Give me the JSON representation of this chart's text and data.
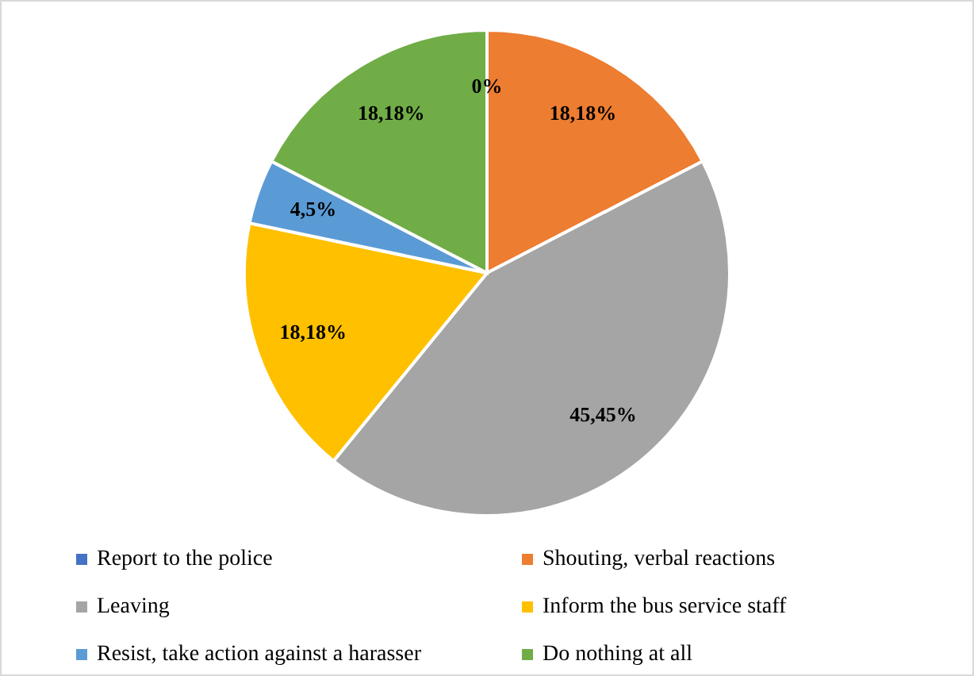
{
  "chart_data": {
    "type": "pie",
    "categories": [
      "Report to the police",
      "Shouting, verbal reactions",
      "Leaving",
      "Inform the bus service staff",
      "Resist, take action against a harasser",
      "Do nothing at all"
    ],
    "values": [
      0,
      18.18,
      45.45,
      18.18,
      4.5,
      18.18
    ],
    "value_labels": [
      "0%",
      "18,18%",
      "45,45%",
      "18,18%",
      "4,5%",
      "18,18%"
    ],
    "colors": [
      "#4472c4",
      "#ed7d31",
      "#a5a5a5",
      "#ffc000",
      "#5b9bd5",
      "#70ad47"
    ],
    "legend": "bottom"
  }
}
